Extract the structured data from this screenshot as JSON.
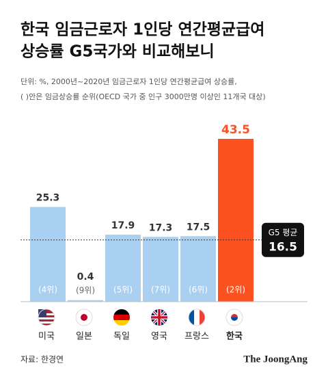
{
  "chart_data": {
    "type": "bar",
    "title": [
      "한국 임금근로자 1인당 연간평균급여",
      "상승률 G5국가와 비교해보니"
    ],
    "subtitle": [
      "단위: %, 2000년~2020년 임금근로자 1인당 연간평균급여 상승률,",
      "( )안은 임금상승률 순위(OECD 국가 중 인구 3000만명 이상인 11개국 대상)"
    ],
    "categories": [
      "미국",
      "일본",
      "독일",
      "영국",
      "프랑스",
      "한국"
    ],
    "values": [
      25.3,
      0.4,
      17.9,
      17.3,
      17.5,
      43.5
    ],
    "rank_labels": [
      "(4위)",
      "(9위)",
      "(5위)",
      "(7위)",
      "(6위)",
      "(2위)"
    ],
    "colors": [
      "#a9d0f0",
      "#a9d0f0",
      "#a9d0f0",
      "#a9d0f0",
      "#a9d0f0",
      "#fc5220"
    ],
    "reference_line": {
      "label": "G5 평균",
      "value": 16.5
    },
    "source": "자료: 한경연",
    "logo": "The JoongAng"
  }
}
